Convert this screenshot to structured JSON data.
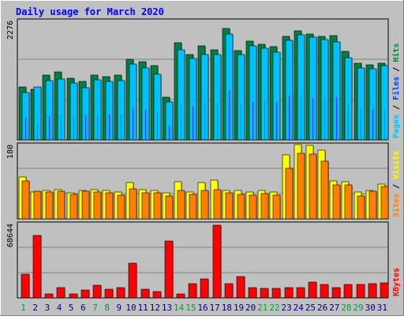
{
  "chart_data": [
    {
      "type": "bar",
      "title": "Daily usage for March 2020",
      "categories": [
        "1",
        "2",
        "3",
        "4",
        "5",
        "6",
        "7",
        "8",
        "9",
        "10",
        "11",
        "12",
        "13",
        "14",
        "15",
        "16",
        "17",
        "18",
        "19",
        "20",
        "21",
        "22",
        "23",
        "24",
        "25",
        "26",
        "27",
        "28",
        "29",
        "30",
        "31"
      ],
      "weekend_days": [
        1,
        7,
        8,
        14,
        15,
        21,
        22,
        28,
        29
      ],
      "ylim": [
        0,
        2276
      ],
      "y_tick_label": "2276",
      "axis_label_parts": [
        "Pages",
        "Files",
        "Hits"
      ],
      "series": [
        {
          "name": "Hits",
          "color": "#008040",
          "values": [
            1019,
            978,
            1253,
            1307,
            1197,
            1127,
            1257,
            1224,
            1248,
            1559,
            1505,
            1442,
            820,
            1872,
            1649,
            1815,
            1748,
            2160,
            1723,
            1911,
            1851,
            1802,
            1998,
            2110,
            2046,
            2008,
            2011,
            1707,
            1481,
            1454,
            1481
          ]
        },
        {
          "name": "Files",
          "color": "#00c0ff",
          "values": [
            914,
            1026,
            1148,
            1178,
            1097,
            1011,
            1159,
            1136,
            1143,
            1460,
            1396,
            1267,
            737,
            1739,
            1571,
            1645,
            1651,
            2054,
            1649,
            1813,
            1776,
            1699,
            1929,
            2030,
            1985,
            1943,
            1901,
            1588,
            1386,
            1375,
            1429
          ]
        },
        {
          "name": "Pages",
          "color": "#0040ff",
          "values": [
            430,
            315,
            460,
            487,
            437,
            478,
            492,
            489,
            486,
            607,
            587,
            530,
            275,
            703,
            650,
            723,
            713,
            945,
            685,
            730,
            758,
            735,
            852,
            864,
            813,
            835,
            822,
            685,
            616,
            603,
            598
          ]
        }
      ]
    },
    {
      "type": "bar",
      "categories": [
        "1",
        "2",
        "3",
        "4",
        "5",
        "6",
        "7",
        "8",
        "9",
        "10",
        "11",
        "12",
        "13",
        "14",
        "15",
        "16",
        "17",
        "18",
        "19",
        "20",
        "21",
        "22",
        "23",
        "24",
        "25",
        "26",
        "27",
        "28",
        "29",
        "30",
        "31"
      ],
      "ylim": [
        0,
        180
      ],
      "y_tick_label": "180",
      "axis_label_parts": [
        "Sites",
        "Visits"
      ],
      "series": [
        {
          "name": "Visits",
          "color": "#ffff00",
          "values": [
            104,
            66,
            71,
            72,
            65,
            71,
            72,
            70,
            67,
            90,
            73,
            70,
            65,
            91,
            66,
            90,
            96,
            71,
            70,
            67,
            71,
            66,
            159,
            184,
            182,
            171,
            93,
            92,
            66,
            71,
            87
          ]
        },
        {
          "name": "Sites",
          "color": "#ff8000",
          "values": [
            94,
            68,
            66,
            69,
            60,
            69,
            66,
            65,
            59,
            75,
            64,
            64,
            57,
            71,
            60,
            71,
            72,
            64,
            61,
            59,
            62,
            58,
            125,
            163,
            160,
            142,
            85,
            85,
            56,
            69,
            80
          ]
        }
      ]
    },
    {
      "type": "bar",
      "categories": [
        "1",
        "2",
        "3",
        "4",
        "5",
        "6",
        "7",
        "8",
        "9",
        "10",
        "11",
        "12",
        "13",
        "14",
        "15",
        "16",
        "17",
        "18",
        "19",
        "20",
        "21",
        "22",
        "23",
        "24",
        "25",
        "26",
        "27",
        "28",
        "29",
        "30",
        "31"
      ],
      "ylim": [
        0,
        68644
      ],
      "y_tick_label": "68644",
      "axis_label_parts": [
        "KBytes"
      ],
      "series": [
        {
          "name": "KBytes",
          "color": "#ff0000",
          "values": [
            22072,
            59271,
            4015,
            9616,
            3994,
            7815,
            11995,
            8210,
            9436,
            33071,
            7969,
            6118,
            53787,
            4101,
            13764,
            18095,
            68644,
            13436,
            20085,
            10049,
            8779,
            8914,
            9903,
            9816,
            15055,
            12960,
            9903,
            12960,
            12960,
            13767,
            14056
          ]
        }
      ]
    }
  ]
}
